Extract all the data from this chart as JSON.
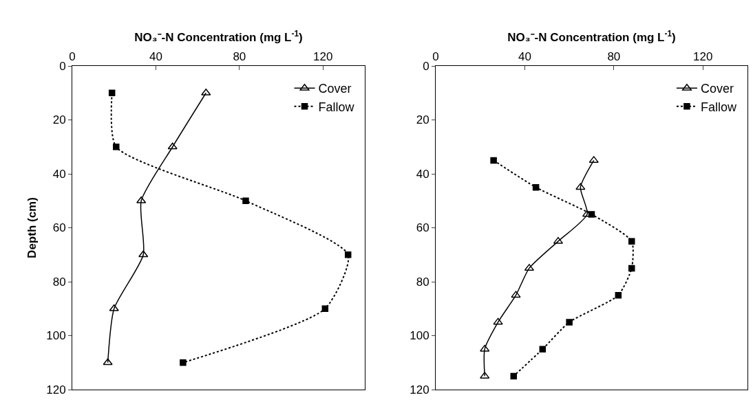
{
  "chart_data": [
    {
      "type": "line",
      "xlabel": "NO₃⁻-N Concentration (mg L$^{-1}$)",
      "ylabel": "Depth (cm)",
      "xlim": [
        0,
        140
      ],
      "xticks": [
        0,
        40,
        80,
        120
      ],
      "ylim": [
        120,
        0
      ],
      "yticks": [
        0,
        20,
        40,
        60,
        80,
        100,
        120
      ],
      "grid": false,
      "legend": "top right",
      "series": [
        {
          "name": "Cover",
          "color": "#000000",
          "marker": "triangle",
          "line_style": "solid",
          "x": [
            64,
            48,
            33,
            34,
            20,
            17
          ],
          "values": [
            10,
            30,
            50,
            70,
            90,
            110
          ]
        },
        {
          "name": "Fallow",
          "color": "#000000",
          "marker": "square",
          "line_style": "dotted",
          "x": [
            19,
            21,
            83,
            132,
            121,
            53
          ],
          "values": [
            10,
            30,
            50,
            70,
            90,
            110
          ]
        }
      ]
    },
    {
      "type": "line",
      "xlabel": "NO₃⁻-N Concentration (mg L$^{-1}$)",
      "xlim": [
        0,
        140
      ],
      "xticks": [
        0,
        40,
        80,
        120
      ],
      "ylim": [
        120,
        0
      ],
      "yticks": [
        0,
        20,
        40,
        60,
        80,
        100,
        120
      ],
      "grid": false,
      "legend": "top right",
      "series": [
        {
          "name": "Cover",
          "color": "#000000",
          "marker": "triangle",
          "line_style": "solid",
          "x": [
            71,
            65,
            68,
            55,
            42,
            36,
            28,
            22,
            22
          ],
          "values": [
            35,
            45,
            55,
            65,
            75,
            85,
            95,
            105,
            115
          ]
        },
        {
          "name": "Fallow",
          "color": "#000000",
          "marker": "square",
          "line_style": "dotted",
          "x": [
            26,
            45,
            70,
            88,
            88,
            82,
            60,
            48,
            35
          ],
          "values": [
            35,
            45,
            55,
            65,
            75,
            85,
            95,
            105,
            115
          ]
        }
      ]
    }
  ]
}
